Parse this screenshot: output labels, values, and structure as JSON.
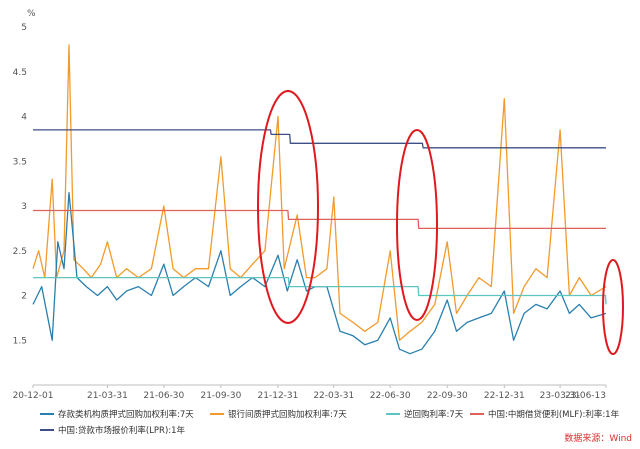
{
  "chart_data": {
    "type": "line",
    "unit": "%",
    "ylim": [
      1.0,
      5.0
    ],
    "yticks": [
      "5",
      "4.5",
      "4",
      "3.5",
      "3",
      "2.5",
      "2",
      "1.5"
    ],
    "ytick_values": [
      5,
      4.5,
      4,
      3.5,
      3,
      2.5,
      2,
      1.5
    ],
    "xlim": [
      "2020-12-01",
      "2023-06-13"
    ],
    "xticks": [
      "20-12-01",
      "21-03-31",
      "21-06-30",
      "21-09-30",
      "21-12-31",
      "22-03-31",
      "22-06-30",
      "22-09-30",
      "22-12-31",
      "23-03-31",
      "23-06-13"
    ],
    "xtick_dates": [
      "2020-12-01",
      "2021-03-31",
      "2021-06-30",
      "2021-09-30",
      "2021-12-31",
      "2022-03-31",
      "2022-06-30",
      "2022-09-30",
      "2022-12-31",
      "2023-03-31",
      "2023-06-13"
    ],
    "grid": false,
    "legend_position": "bottom",
    "source": "数据来源：Wind",
    "series": [
      {
        "name": "存款类机构质押式回购加权利率:7天",
        "color": "#2a7fae",
        "points": [
          [
            "2020-12-01",
            1.9
          ],
          [
            "2020-12-15",
            2.1
          ],
          [
            "2021-01-01",
            1.5
          ],
          [
            "2021-01-10",
            2.6
          ],
          [
            "2021-01-20",
            2.3
          ],
          [
            "2021-01-28",
            3.15
          ],
          [
            "2021-02-10",
            2.2
          ],
          [
            "2021-02-25",
            2.1
          ],
          [
            "2021-03-15",
            2.0
          ],
          [
            "2021-03-31",
            2.1
          ],
          [
            "2021-04-15",
            1.95
          ],
          [
            "2021-05-01",
            2.05
          ],
          [
            "2021-05-20",
            2.1
          ],
          [
            "2021-06-10",
            2.0
          ],
          [
            "2021-06-30",
            2.35
          ],
          [
            "2021-07-15",
            2.0
          ],
          [
            "2021-08-01",
            2.1
          ],
          [
            "2021-08-20",
            2.2
          ],
          [
            "2021-09-10",
            2.1
          ],
          [
            "2021-09-30",
            2.5
          ],
          [
            "2021-10-15",
            2.0
          ],
          [
            "2021-11-01",
            2.1
          ],
          [
            "2021-11-20",
            2.2
          ],
          [
            "2021-12-10",
            2.1
          ],
          [
            "2021-12-31",
            2.45
          ],
          [
            "2022-01-15",
            2.05
          ],
          [
            "2022-01-31",
            2.4
          ],
          [
            "2022-02-15",
            2.05
          ],
          [
            "2022-03-01",
            2.1
          ],
          [
            "2022-03-20",
            2.1
          ],
          [
            "2022-04-10",
            1.6
          ],
          [
            "2022-05-01",
            1.55
          ],
          [
            "2022-05-20",
            1.45
          ],
          [
            "2022-06-10",
            1.5
          ],
          [
            "2022-06-30",
            1.75
          ],
          [
            "2022-07-15",
            1.4
          ],
          [
            "2022-08-01",
            1.35
          ],
          [
            "2022-08-20",
            1.4
          ],
          [
            "2022-09-10",
            1.6
          ],
          [
            "2022-09-30",
            1.95
          ],
          [
            "2022-10-15",
            1.6
          ],
          [
            "2022-11-01",
            1.7
          ],
          [
            "2022-11-20",
            1.75
          ],
          [
            "2022-12-10",
            1.8
          ],
          [
            "2022-12-31",
            2.05
          ],
          [
            "2023-01-15",
            1.5
          ],
          [
            "2023-02-01",
            1.8
          ],
          [
            "2023-02-20",
            1.9
          ],
          [
            "2023-03-10",
            1.85
          ],
          [
            "2023-03-31",
            2.05
          ],
          [
            "2023-04-15",
            1.8
          ],
          [
            "2023-05-01",
            1.9
          ],
          [
            "2023-05-20",
            1.75
          ],
          [
            "2023-06-13",
            1.8
          ]
        ]
      },
      {
        "name": "银行间质押式回购加权利率:7天",
        "color": "#f39a2b",
        "points": [
          [
            "2020-12-01",
            2.3
          ],
          [
            "2020-12-10",
            2.5
          ],
          [
            "2020-12-20",
            2.2
          ],
          [
            "2021-01-01",
            3.3
          ],
          [
            "2021-01-08",
            2.2
          ],
          [
            "2021-01-20",
            2.5
          ],
          [
            "2021-01-28",
            4.8
          ],
          [
            "2021-02-05",
            2.4
          ],
          [
            "2021-02-20",
            2.3
          ],
          [
            "2021-03-05",
            2.2
          ],
          [
            "2021-03-20",
            2.35
          ],
          [
            "2021-03-31",
            2.6
          ],
          [
            "2021-04-15",
            2.2
          ],
          [
            "2021-05-01",
            2.3
          ],
          [
            "2021-05-20",
            2.2
          ],
          [
            "2021-06-10",
            2.3
          ],
          [
            "2021-06-30",
            3.0
          ],
          [
            "2021-07-15",
            2.3
          ],
          [
            "2021-08-01",
            2.2
          ],
          [
            "2021-08-20",
            2.3
          ],
          [
            "2021-09-10",
            2.3
          ],
          [
            "2021-09-30",
            3.55
          ],
          [
            "2021-10-15",
            2.3
          ],
          [
            "2021-11-01",
            2.2
          ],
          [
            "2021-11-20",
            2.35
          ],
          [
            "2021-12-10",
            2.5
          ],
          [
            "2021-12-31",
            4.0
          ],
          [
            "2022-01-10",
            2.3
          ],
          [
            "2022-01-31",
            2.9
          ],
          [
            "2022-02-15",
            2.2
          ],
          [
            "2022-03-01",
            2.2
          ],
          [
            "2022-03-20",
            2.3
          ],
          [
            "2022-03-31",
            3.1
          ],
          [
            "2022-04-10",
            1.8
          ],
          [
            "2022-05-01",
            1.7
          ],
          [
            "2022-05-20",
            1.6
          ],
          [
            "2022-06-10",
            1.7
          ],
          [
            "2022-06-30",
            2.5
          ],
          [
            "2022-07-15",
            1.5
          ],
          [
            "2022-08-01",
            1.6
          ],
          [
            "2022-08-20",
            1.7
          ],
          [
            "2022-09-10",
            1.9
          ],
          [
            "2022-09-30",
            2.6
          ],
          [
            "2022-10-15",
            1.8
          ],
          [
            "2022-11-01",
            2.0
          ],
          [
            "2022-11-20",
            2.2
          ],
          [
            "2022-12-10",
            2.1
          ],
          [
            "2022-12-31",
            4.2
          ],
          [
            "2023-01-15",
            1.8
          ],
          [
            "2023-02-01",
            2.1
          ],
          [
            "2023-02-20",
            2.3
          ],
          [
            "2023-03-10",
            2.2
          ],
          [
            "2023-03-31",
            3.85
          ],
          [
            "2023-04-15",
            2.0
          ],
          [
            "2023-05-01",
            2.2
          ],
          [
            "2023-05-20",
            2.0
          ],
          [
            "2023-06-13",
            2.1
          ]
        ]
      },
      {
        "name": "逆回购利率:7天",
        "color": "#5dc4c2",
        "points": [
          [
            "2020-12-01",
            2.2
          ],
          [
            "2022-01-17",
            2.2
          ],
          [
            "2022-01-18",
            2.1
          ],
          [
            "2022-08-14",
            2.1
          ],
          [
            "2022-08-15",
            2.0
          ],
          [
            "2023-06-12",
            2.0
          ],
          [
            "2023-06-13",
            1.9
          ]
        ]
      },
      {
        "name": "中国:中期借贷便利(MLF):利率:1年",
        "color": "#e0605a",
        "points": [
          [
            "2020-12-01",
            2.95
          ],
          [
            "2022-01-16",
            2.95
          ],
          [
            "2022-01-17",
            2.85
          ],
          [
            "2022-08-14",
            2.85
          ],
          [
            "2022-08-15",
            2.75
          ],
          [
            "2023-06-13",
            2.75
          ]
        ]
      },
      {
        "name": "中国:贷款市场报价利率(LPR):1年",
        "color": "#3e4f88",
        "points": [
          [
            "2020-12-01",
            3.85
          ],
          [
            "2021-12-19",
            3.85
          ],
          [
            "2021-12-20",
            3.8
          ],
          [
            "2022-01-19",
            3.8
          ],
          [
            "2022-01-20",
            3.7
          ],
          [
            "2022-08-21",
            3.7
          ],
          [
            "2022-08-22",
            3.65
          ],
          [
            "2023-06-13",
            3.65
          ]
        ]
      }
    ]
  }
}
